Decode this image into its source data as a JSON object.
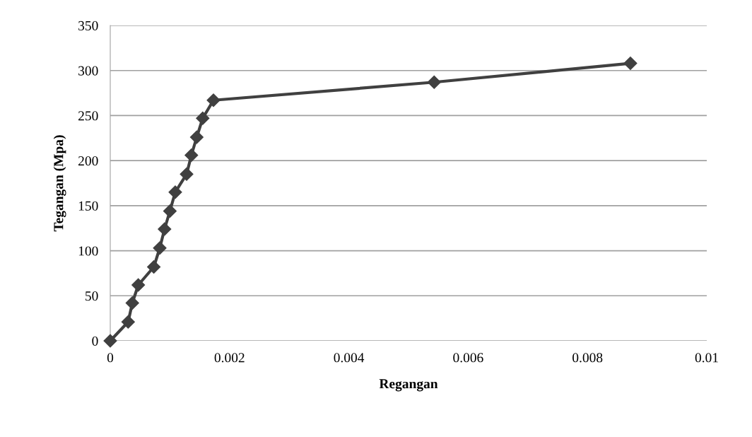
{
  "chart_data": {
    "type": "line",
    "xlabel": "Regangan",
    "ylabel": "Tegangan (Mpa)",
    "x": [
      0,
      0.0003,
      0.00037,
      0.00047,
      0.00073,
      0.00083,
      0.00091,
      0.001,
      0.00109,
      0.00128,
      0.00136,
      0.00145,
      0.00155,
      0.00173,
      0.00543,
      0.00872
    ],
    "series": [
      {
        "color": "#404040",
        "values": [
          0,
          21,
          42,
          62,
          82,
          103,
          124,
          144,
          165,
          185,
          206,
          226,
          247,
          267,
          287,
          308
        ]
      }
    ],
    "xlim": [
      0,
      0.01
    ],
    "xticks": [
      0,
      0.002,
      0.004,
      0.006,
      0.008,
      0.01
    ],
    "ylim": [
      0,
      350
    ],
    "yticks": [
      0,
      50,
      100,
      150,
      200,
      250,
      300,
      350
    ],
    "grid": "y",
    "marker": "diamond",
    "line_style": "solid",
    "legend": false
  }
}
